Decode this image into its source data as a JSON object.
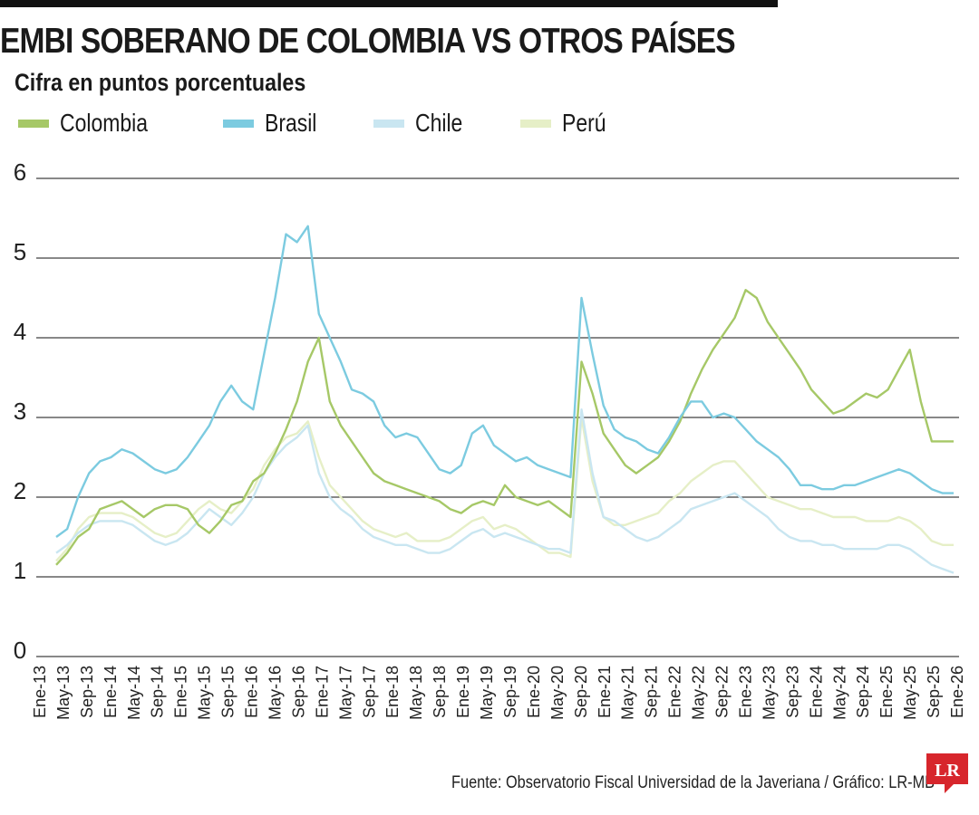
{
  "title": "EMBI SOBERANO DE COLOMBIA VS OTROS PAÍSES",
  "subtitle": "Cifra en puntos porcentuales",
  "source": "Fuente: Observatorio Fiscal Universidad de la Javeriana / Gráfico: LR-MB",
  "logo_text": "LR",
  "colors": {
    "Colombia": "#a6c867",
    "Brasil": "#7ccbe0",
    "Chile": "#c9e6f1",
    "Perú": "#e6efc7",
    "logo": "#d7262c",
    "grid": "#111111"
  },
  "chart_data": {
    "type": "line",
    "title": "EMBI SOBERANO DE COLOMBIA VS OTROS PAÍSES",
    "ylabel": "",
    "xlabel": "",
    "ylim": [
      0,
      6
    ],
    "yticks": [
      0,
      1,
      2,
      3,
      4,
      5,
      6
    ],
    "grid": true,
    "legend_position": "top-left",
    "x_tick_labels": [
      "Ene-13",
      "May-13",
      "Sep-13",
      "Ene-14",
      "May-14",
      "Sep-14",
      "Ene-15",
      "May-15",
      "Sep-15",
      "Ene-16",
      "May-16",
      "Sep-16",
      "Ene-17",
      "May-17",
      "Sep-17",
      "Ene-18",
      "May-18",
      "Sep-18",
      "Ene-19",
      "May-19",
      "Sep-19",
      "Ene-20",
      "May-20",
      "Sep-20",
      "Ene-21",
      "May-21",
      "Sep-21",
      "Ene-22",
      "May-22",
      "Sep-22",
      "Ene-23",
      "May-23",
      "Sep-23",
      "Ene-24",
      "May-24",
      "Sep-24",
      "Ene-25",
      "May-25",
      "Sep-25",
      "Ene-26"
    ],
    "x_period": "monthly, Ene-13 to Ene-26",
    "series": [
      {
        "name": "Colombia",
        "color": "#a6c867",
        "values": [
          1.15,
          1.3,
          1.5,
          1.6,
          1.85,
          1.9,
          1.95,
          1.85,
          1.75,
          1.85,
          1.9,
          1.9,
          1.85,
          1.65,
          1.55,
          1.7,
          1.9,
          1.95,
          2.2,
          2.3,
          2.55,
          2.85,
          3.2,
          3.7,
          4.0,
          3.2,
          2.9,
          2.7,
          2.5,
          2.3,
          2.2,
          2.15,
          2.1,
          2.05,
          2.0,
          1.95,
          1.85,
          1.8,
          1.9,
          1.95,
          1.9,
          2.15,
          2.0,
          1.95,
          1.9,
          1.95,
          1.85,
          1.75,
          3.7,
          3.3,
          2.8,
          2.6,
          2.4,
          2.3,
          2.4,
          2.5,
          2.7,
          2.95,
          3.3,
          3.6,
          3.85,
          4.05,
          4.25,
          4.6,
          4.5,
          4.2,
          4.0,
          3.8,
          3.6,
          3.35,
          3.2,
          3.05,
          3.1,
          3.2,
          3.3,
          3.25,
          3.35,
          3.6,
          3.85,
          3.2,
          2.7,
          2.7,
          2.7
        ]
      },
      {
        "name": "Brasil",
        "color": "#7ccbe0",
        "values": [
          1.5,
          1.6,
          2.0,
          2.3,
          2.45,
          2.5,
          2.6,
          2.55,
          2.45,
          2.35,
          2.3,
          2.35,
          2.5,
          2.7,
          2.9,
          3.2,
          3.4,
          3.2,
          3.1,
          3.8,
          4.5,
          5.3,
          5.2,
          5.4,
          4.3,
          4.0,
          3.7,
          3.35,
          3.3,
          3.2,
          2.9,
          2.75,
          2.8,
          2.75,
          2.55,
          2.35,
          2.3,
          2.4,
          2.8,
          2.9,
          2.65,
          2.55,
          2.45,
          2.5,
          2.4,
          2.35,
          2.3,
          2.25,
          4.5,
          3.8,
          3.15,
          2.85,
          2.75,
          2.7,
          2.6,
          2.55,
          2.75,
          3.0,
          3.2,
          3.2,
          3.0,
          3.05,
          3.0,
          2.85,
          2.7,
          2.6,
          2.5,
          2.35,
          2.15,
          2.15,
          2.1,
          2.1,
          2.15,
          2.15,
          2.2,
          2.25,
          2.3,
          2.35,
          2.3,
          2.2,
          2.1,
          2.05,
          2.05
        ]
      },
      {
        "name": "Chile",
        "color": "#c9e6f1",
        "values": [
          1.3,
          1.4,
          1.55,
          1.65,
          1.7,
          1.7,
          1.7,
          1.65,
          1.55,
          1.45,
          1.4,
          1.45,
          1.55,
          1.7,
          1.85,
          1.75,
          1.65,
          1.8,
          2.0,
          2.3,
          2.5,
          2.65,
          2.75,
          2.9,
          2.3,
          2.0,
          1.85,
          1.75,
          1.6,
          1.5,
          1.45,
          1.4,
          1.4,
          1.35,
          1.3,
          1.3,
          1.35,
          1.45,
          1.55,
          1.6,
          1.5,
          1.55,
          1.5,
          1.45,
          1.4,
          1.35,
          1.35,
          1.3,
          3.1,
          2.3,
          1.75,
          1.7,
          1.6,
          1.5,
          1.45,
          1.5,
          1.6,
          1.7,
          1.85,
          1.9,
          1.95,
          2.0,
          2.05,
          1.95,
          1.85,
          1.75,
          1.6,
          1.5,
          1.45,
          1.45,
          1.4,
          1.4,
          1.35,
          1.35,
          1.35,
          1.35,
          1.4,
          1.4,
          1.35,
          1.25,
          1.15,
          1.1,
          1.05
        ]
      },
      {
        "name": "Perú",
        "color": "#e6efc7",
        "values": [
          1.2,
          1.35,
          1.6,
          1.75,
          1.8,
          1.8,
          1.8,
          1.75,
          1.65,
          1.55,
          1.5,
          1.55,
          1.7,
          1.85,
          1.95,
          1.85,
          1.8,
          1.95,
          2.1,
          2.4,
          2.6,
          2.75,
          2.8,
          2.95,
          2.5,
          2.15,
          2.0,
          1.85,
          1.7,
          1.6,
          1.55,
          1.5,
          1.55,
          1.45,
          1.45,
          1.45,
          1.5,
          1.6,
          1.7,
          1.75,
          1.6,
          1.65,
          1.6,
          1.5,
          1.4,
          1.3,
          1.3,
          1.25,
          3.0,
          2.2,
          1.75,
          1.65,
          1.65,
          1.7,
          1.75,
          1.8,
          1.95,
          2.05,
          2.2,
          2.3,
          2.4,
          2.45,
          2.45,
          2.3,
          2.15,
          2.0,
          1.95,
          1.9,
          1.85,
          1.85,
          1.8,
          1.75,
          1.75,
          1.75,
          1.7,
          1.7,
          1.7,
          1.75,
          1.7,
          1.6,
          1.45,
          1.4,
          1.4
        ]
      }
    ]
  }
}
